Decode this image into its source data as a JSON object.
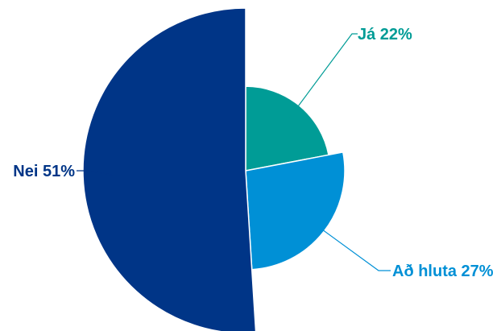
{
  "chart_data": {
    "type": "pie",
    "variant": "variable-radius",
    "title": "",
    "slices": [
      {
        "label": "Já",
        "value": 22,
        "display": "Já 22%",
        "color": "#009c96"
      },
      {
        "label": "Að hluta",
        "value": 27,
        "display": "Að hluta 27%",
        "color": "#0090d6"
      },
      {
        "label": "Nei",
        "value": 51,
        "display": "Nei 51%",
        "color": "#003587"
      }
    ],
    "legend": "none",
    "data_labels": "outside-with-leader-lines"
  }
}
